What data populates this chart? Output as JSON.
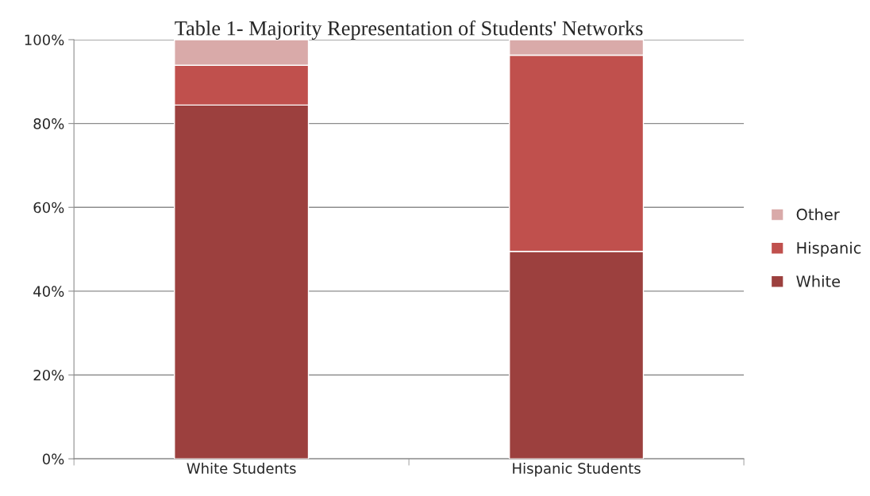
{
  "chart_data": {
    "type": "bar",
    "title": "Table 1- Majority Representation of Students' Networks",
    "categories": [
      "White Students",
      "Hispanic Students"
    ],
    "stacked": true,
    "series": [
      {
        "name": "White",
        "color": "#9c403e",
        "values": [
          84.4,
          49.5
        ]
      },
      {
        "name": "Hispanic",
        "color": "#c0504d",
        "values": [
          9.5,
          46.8
        ]
      },
      {
        "name": "Other",
        "color": "#d9aaa9",
        "values": [
          6.1,
          3.7
        ]
      }
    ],
    "ylim": [
      0,
      100
    ],
    "yticks": [
      {
        "value": 0,
        "label": "0%"
      },
      {
        "value": 20,
        "label": "20%"
      },
      {
        "value": 40,
        "label": "40%"
      },
      {
        "value": 60,
        "label": "60%"
      },
      {
        "value": 80,
        "label": "80%"
      },
      {
        "value": 100,
        "label": "100%"
      }
    ],
    "grid": "y",
    "legend": "right"
  }
}
